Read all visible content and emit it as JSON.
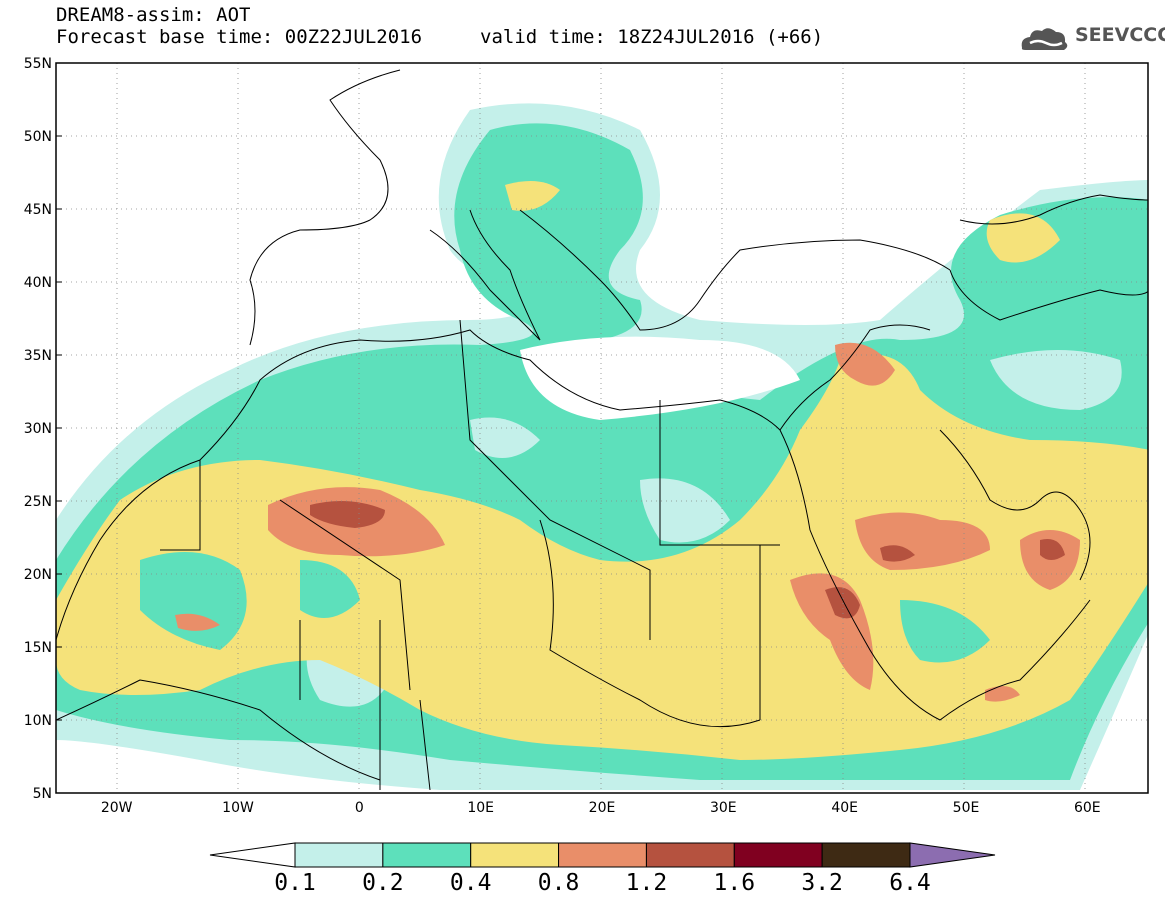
{
  "header": {
    "title": "DREAM8-assim: AOT",
    "base_time": "Forecast base time: 00Z22JUL2016",
    "valid_time": "valid time: 18Z24JUL2016 (+66)",
    "logo_text": "SEEVCCC"
  },
  "map": {
    "lat_range": [
      5,
      55
    ],
    "lon_range": [
      -25,
      65
    ],
    "lat_labels": [
      "55N",
      "50N",
      "45N",
      "40N",
      "35N",
      "30N",
      "25N",
      "20N",
      "15N",
      "10N",
      "5N"
    ],
    "lon_labels": [
      "20W",
      "10W",
      "0",
      "10E",
      "20E",
      "30E",
      "40E",
      "50E",
      "60E"
    ],
    "grid": true
  },
  "colorbar": {
    "labels": [
      "0.1",
      "0.2",
      "0.4",
      "0.8",
      "1.2",
      "1.6",
      "3.2",
      "6.4"
    ],
    "colors": [
      "#ffffff",
      "#c4f0ea",
      "#5de0bb",
      "#f5e27a",
      "#e98e69",
      "#b5523f",
      "#800020",
      "#3e2a14",
      "#8c6db0"
    ]
  }
}
